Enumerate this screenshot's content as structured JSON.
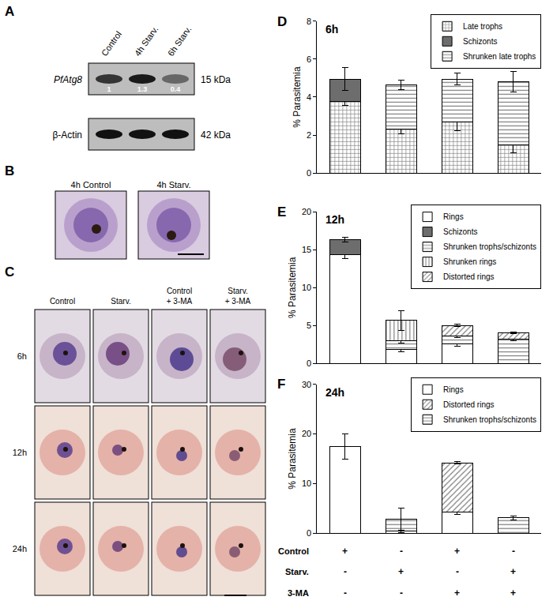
{
  "panels": {
    "A": {
      "letter": "A",
      "lanes": [
        "Control",
        "4h Starv.",
        "6h Starv."
      ],
      "blots": [
        {
          "protein": "PfAtg8",
          "size": "15 kDa",
          "band_values": [
            1,
            1.3,
            0.4
          ]
        },
        {
          "protein": "β-Actin",
          "size": "42 kDa"
        }
      ]
    },
    "B": {
      "letter": "B",
      "images": [
        "4h Control",
        "4h Starv."
      ]
    },
    "C": {
      "letter": "C",
      "columns": [
        "Control",
        "Starv.",
        "Control + 3-MA",
        "Starv. + 3-MA"
      ],
      "rows": [
        "6h",
        "12h",
        "24h"
      ]
    }
  },
  "chart_data": [
    {
      "type": "bar",
      "panel": "D",
      "title": "6h",
      "stacked": true,
      "grid": false,
      "legend": "upper right",
      "tick_labels": "y",
      "categories": [
        null,
        null,
        null,
        null
      ],
      "y_label": "% Parasitemia",
      "ylim": [
        0,
        8
      ],
      "yticks": [
        0,
        2,
        4,
        6,
        8
      ],
      "series": [
        {
          "name": "Late trophs",
          "color": "#ffffff",
          "marker": "checkered",
          "values": [
            3.75,
            2.3,
            2.7,
            1.5
          ],
          "errors": [
            0.2,
            0.25,
            0.45,
            0.45
          ]
        },
        {
          "name": "Schizonts",
          "color": "#6d6d6d",
          "marker": "solid",
          "values": [
            1.2,
            null,
            null,
            null
          ],
          "errors": [
            0.6,
            null,
            null,
            null
          ]
        },
        {
          "name": "Shrunken late trophs",
          "color": "#ffffff",
          "marker": "horizontal",
          "values": [
            null,
            2.35,
            2.25,
            3.3
          ],
          "errors": [
            null,
            0.25,
            0.3,
            0.55
          ]
        }
      ]
    },
    {
      "type": "bar",
      "panel": "E",
      "title": "12h",
      "stacked": true,
      "grid": false,
      "legend": "upper right",
      "tick_labels": "y",
      "categories": [
        null,
        null,
        null,
        null
      ],
      "y_label": "% Parasitemia",
      "ylim": [
        0,
        20
      ],
      "yticks": [
        0,
        5,
        10,
        15,
        20
      ],
      "series": [
        {
          "name": "Rings",
          "color": "#ffffff",
          "marker": "none",
          "values": [
            14.3,
            1.9,
            2.6,
            null
          ],
          "errors": [
            0.5,
            0.3,
            0.3,
            null
          ]
        },
        {
          "name": "Schizonts",
          "color": "#6d6d6d",
          "marker": "solid",
          "values": [
            2.0,
            null,
            null,
            null
          ],
          "errors": [
            0.3,
            null,
            null,
            null
          ]
        },
        {
          "name": "Shrunken trophs/schizonts",
          "color": "#ffffff",
          "marker": "horizontal",
          "values": [
            null,
            1.1,
            1.0,
            3.2
          ],
          "errors": [
            null,
            0.3,
            0.2,
            0.2
          ]
        },
        {
          "name": "Shrunken rings",
          "color": "#ffffff",
          "marker": "vertical",
          "values": [
            null,
            2.7,
            null,
            null
          ],
          "errors": [
            null,
            1.3,
            null,
            null
          ]
        },
        {
          "name": "Distorted rings",
          "color": "#ffffff",
          "marker": "diagonal",
          "values": [
            null,
            null,
            1.4,
            0.8
          ],
          "errors": [
            null,
            null,
            0.15,
            0.1
          ]
        }
      ]
    },
    {
      "type": "bar",
      "panel": "F",
      "title": "24h",
      "stacked": true,
      "grid": false,
      "legend": "upper right",
      "tick_labels": "y",
      "categories": [
        null,
        null,
        null,
        null
      ],
      "y_label": "% Parasitemia",
      "ylim": [
        0,
        30
      ],
      "yticks": [
        0,
        10,
        20,
        30
      ],
      "conditions": [
        {
          "label": "Control",
          "marks": [
            "+",
            "-",
            "+",
            "-"
          ]
        },
        {
          "label": "Starv.",
          "marks": [
            "-",
            "+",
            "-",
            "+"
          ]
        },
        {
          "label": "3-MA",
          "marks": [
            "-",
            "-",
            "+",
            "+"
          ]
        }
      ],
      "series": [
        {
          "name": "Rings",
          "color": "#ffffff",
          "marker": "none",
          "values": [
            17.5,
            0.4,
            4.3,
            null
          ],
          "errors": [
            2.5,
            0.3,
            0.5,
            null
          ]
        },
        {
          "name": "Distorted rings",
          "color": "#ffffff",
          "marker": "diagonal",
          "values": [
            null,
            null,
            9.9,
            null
          ],
          "errors": [
            null,
            null,
            0.3,
            null
          ]
        },
        {
          "name": "Shrunken trophs/schizonts",
          "color": "#ffffff",
          "marker": "horizontal",
          "values": [
            null,
            2.4,
            null,
            3.1
          ],
          "errors": [
            null,
            2.2,
            null,
            0.4
          ]
        }
      ]
    }
  ]
}
